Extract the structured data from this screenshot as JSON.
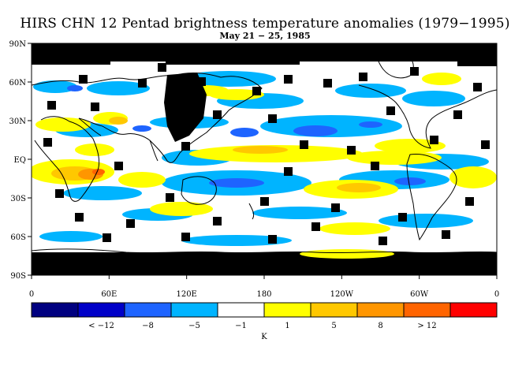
{
  "title": "HIRS CHN 12 Pentad brightness temperature anomalies (1979−1995)",
  "subtitle": "May 21 − 25, 1985",
  "map": {
    "lat_labels": [
      "90N",
      "60N",
      "30N",
      "EQ",
      "30S",
      "60S",
      "90S"
    ],
    "lon_labels": [
      "0",
      "60E",
      "120E",
      "180",
      "120W",
      "60W",
      "0"
    ],
    "missing_data_color": "#000000",
    "coastline_color": "#000000"
  },
  "colorbar": {
    "unit_label": "K",
    "colors": [
      "#000080",
      "#0000c8",
      "#1e64ff",
      "#00b4ff",
      "#ffffff",
      "#ffff00",
      "#ffc800",
      "#ff9600",
      "#ff6400",
      "#ff0000"
    ],
    "labels": [
      "< −12",
      "−8",
      "−5",
      "−1",
      "1",
      "5",
      "8",
      "> 12"
    ]
  }
}
